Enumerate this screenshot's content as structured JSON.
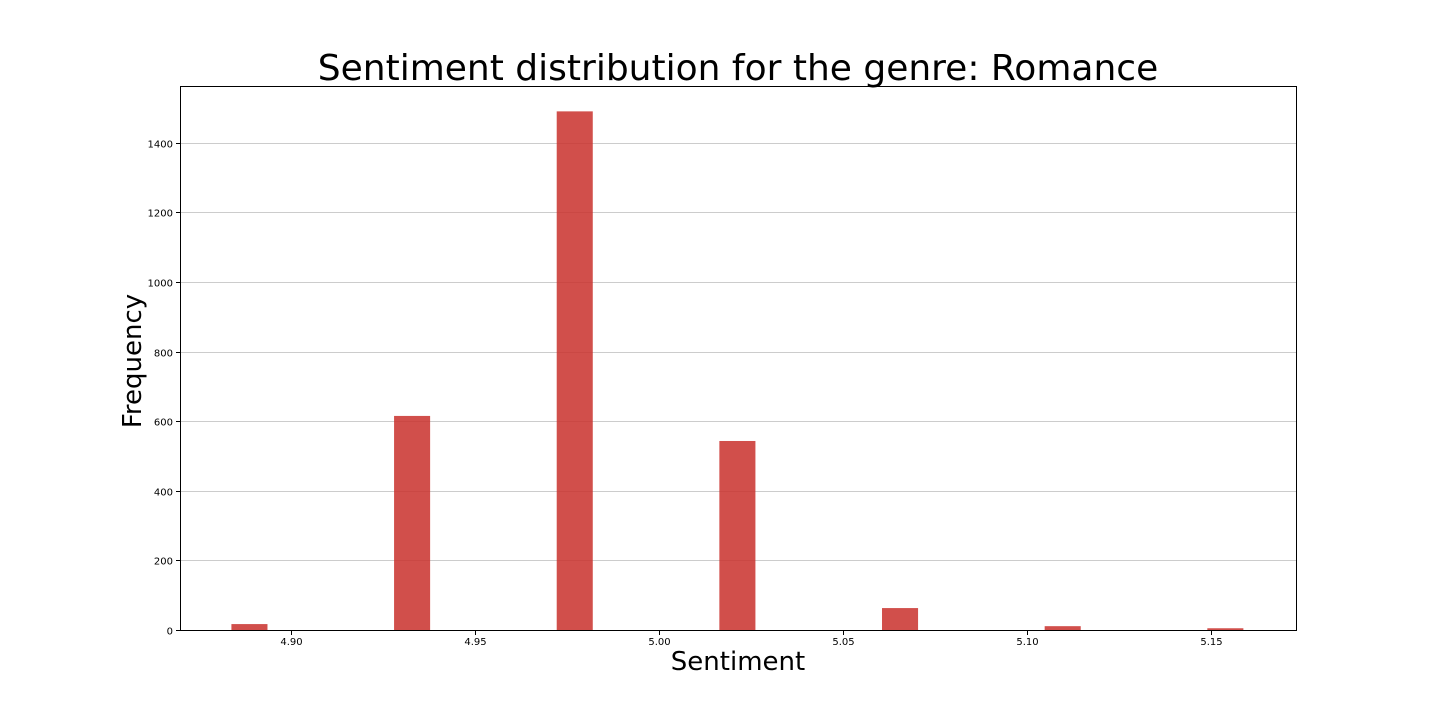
{
  "chart_data": {
    "type": "bar",
    "title": "Sentiment distribution for the genre: Romance",
    "xlabel": "Sentiment",
    "ylabel": "Frequency",
    "xlim": [
      4.87,
      5.173
    ],
    "ylim": [
      0,
      1560
    ],
    "x_ticks": [
      4.9,
      4.95,
      5.0,
      5.05,
      5.1,
      5.15
    ],
    "x_tick_labels": [
      "4.90",
      "4.95",
      "5.00",
      "5.05",
      "5.10",
      "5.15"
    ],
    "y_ticks": [
      0,
      200,
      400,
      600,
      800,
      1000,
      1200,
      1400
    ],
    "y_tick_labels": [
      "0",
      "200",
      "400",
      "600",
      "800",
      "1000",
      "1200",
      "1400"
    ],
    "grid": "y",
    "bar_color": "#c9302c",
    "bar_opacity": 0.85,
    "bins": [
      {
        "x0": 4.8837,
        "x1": 4.8935,
        "value": 17
      },
      {
        "x0": 4.9279,
        "x1": 4.9377,
        "value": 615
      },
      {
        "x0": 4.9721,
        "x1": 4.9819,
        "value": 1490
      },
      {
        "x0": 5.0163,
        "x1": 5.0261,
        "value": 543
      },
      {
        "x0": 5.0605,
        "x1": 5.0703,
        "value": 63
      },
      {
        "x0": 5.1047,
        "x1": 5.1145,
        "value": 11
      },
      {
        "x0": 5.1489,
        "x1": 5.1587,
        "value": 5
      }
    ]
  }
}
